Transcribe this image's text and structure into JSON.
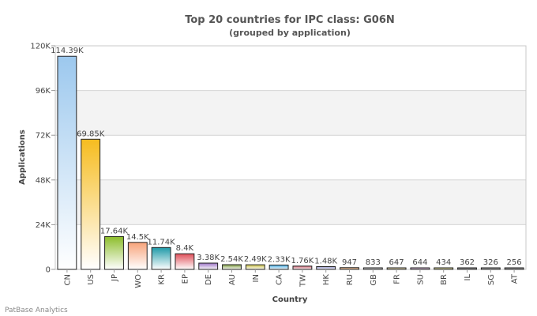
{
  "chart_data": {
    "type": "bar",
    "title": "Top 20 countries for IPC class: G06N",
    "subtitle": "(grouped by application)",
    "xlabel": "Country",
    "ylabel": "Applications",
    "ylim": [
      0,
      120000
    ],
    "yticks": [
      0,
      24000,
      48000,
      72000,
      96000,
      120000
    ],
    "ytick_labels": [
      "0",
      "24K",
      "48K",
      "72K",
      "96K",
      "120K"
    ],
    "grid": "alternating horizontal bands",
    "legend": "none",
    "categories": [
      "CN",
      "US",
      "JP",
      "WO",
      "KR",
      "EP",
      "DE",
      "AU",
      "IN",
      "CA",
      "TW",
      "HK",
      "RU",
      "GB",
      "FR",
      "SU",
      "BR",
      "IL",
      "SG",
      "AT"
    ],
    "values": [
      114390,
      69850,
      17640,
      14500,
      11740,
      8400,
      3380,
      2540,
      2490,
      2330,
      1760,
      1480,
      947,
      833,
      647,
      644,
      434,
      362,
      326,
      256
    ],
    "data_labels": [
      "114.39K",
      "69.85K",
      "17.64K",
      "14.5K",
      "11.74K",
      "8.4K",
      "3.38K",
      "2.54K",
      "2.49K",
      "2.33K",
      "1.76K",
      "1.48K",
      "947",
      "833",
      "647",
      "644",
      "434",
      "362",
      "326",
      "256"
    ],
    "colors": [
      "#9cc8ee",
      "#f6bc1f",
      "#8cbd2a",
      "#f7a37a",
      "#1f9aa8",
      "#e0505a",
      "#9b72c4",
      "#7a9a3a",
      "#c8c040",
      "#40a8e0",
      "#d06070",
      "#8e90c8",
      "#e08a40",
      "#9a9a9a",
      "#d8c070",
      "#b880b8",
      "#c8c050",
      "#333333",
      "#555555",
      "#444444"
    ]
  },
  "footer": {
    "credit": "PatBase Analytics"
  }
}
